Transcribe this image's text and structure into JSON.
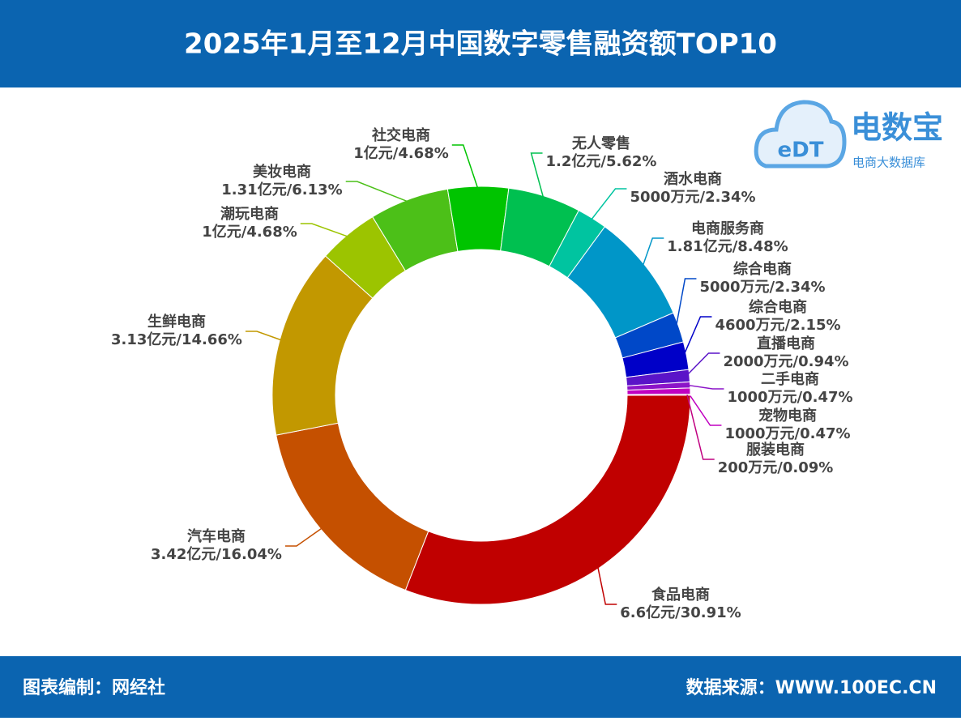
{
  "header": {
    "title": "2025年1月至12月中国数字零售融资额TOP10"
  },
  "logo": {
    "mark": "eDT",
    "name": "电数宝",
    "subtitle": "电商大数据库"
  },
  "chart_data": {
    "type": "donut",
    "categories": [
      "食品电商",
      "汽车电商",
      "生鲜电商",
      "潮玩电商",
      "美妆电商",
      "社交电商",
      "无人零售",
      "酒水电商",
      "电商服务商",
      "综合电商",
      "综合电商",
      "直播电商",
      "二手电商",
      "宠物电商",
      "服装电商"
    ],
    "values": [
      30.91,
      16.04,
      14.66,
      4.68,
      6.13,
      4.68,
      5.62,
      2.34,
      8.48,
      2.34,
      2.15,
      0.94,
      0.47,
      0.47,
      0.09
    ],
    "value_labels": [
      "6.6亿元/30.91%",
      "3.42亿元/16.04%",
      "3.13亿元/14.66%",
      "1亿元/4.68%",
      "1.31亿元/6.13%",
      "1亿元/4.68%",
      "1.2亿元/5.62%",
      "5000万元/2.34%",
      "1.81亿元/8.48%",
      "5000万元/2.34%",
      "4600万元/2.15%",
      "2000万元/0.94%",
      "1000万元/0.47%",
      "1000万元/0.47%",
      "200万元/0.09%"
    ],
    "colors": [
      "#c00000",
      "#c55000",
      "#c29800",
      "#9cc400",
      "#4cc018",
      "#00c400",
      "#00c050",
      "#00c4a0",
      "#0096c8",
      "#0048c8",
      "#0000c8",
      "#5a14c8",
      "#8c14c8",
      "#c000c0",
      "#c00080"
    ]
  },
  "footer": {
    "left": "图表编制：网经社",
    "right": "数据来源：WWW.100EC.CN"
  }
}
